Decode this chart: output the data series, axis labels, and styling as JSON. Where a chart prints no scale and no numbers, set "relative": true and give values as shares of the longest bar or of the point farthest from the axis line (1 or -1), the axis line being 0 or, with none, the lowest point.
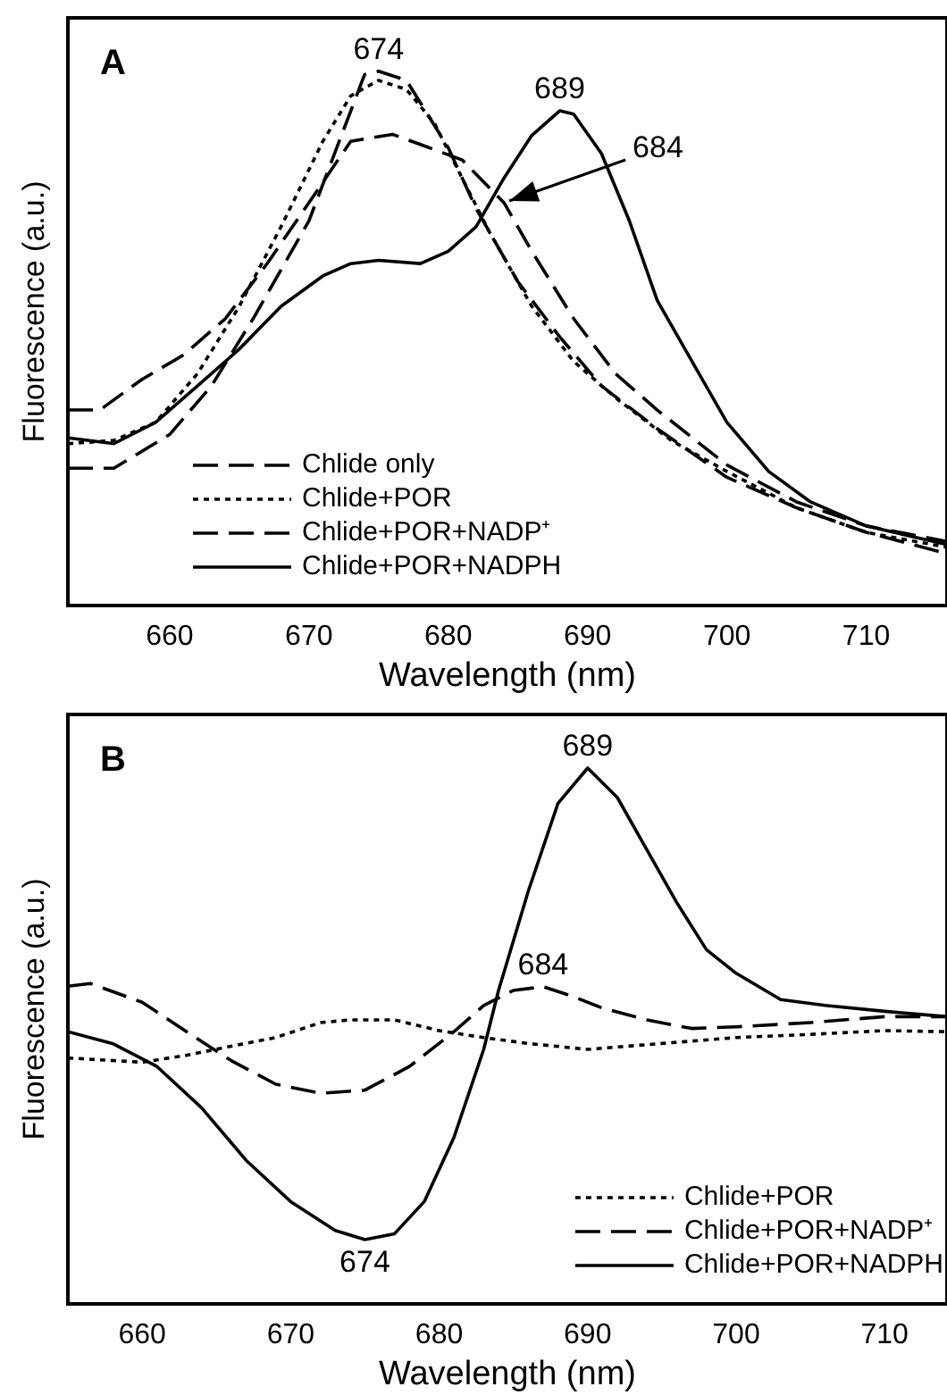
{
  "chart_data": [
    {
      "type": "line",
      "title": "A",
      "xlabel": "Wavelength (nm)",
      "ylabel": "Fluorescence (a.u.)",
      "relative": true,
      "xlim": [
        652.7,
        715.8
      ],
      "xticks": [
        660,
        670,
        680,
        690,
        700,
        710
      ],
      "tick_labels": "x",
      "legend": "bottom left",
      "annotations": [
        {
          "text": "674",
          "x": 675,
          "y": 1.0
        },
        {
          "text": "689",
          "x": 688,
          "y": 0.926
        },
        {
          "text": "684",
          "x": 684,
          "y": 0.754
        }
      ],
      "series": [
        {
          "name": "Chlide only",
          "color": "#000000",
          "line_style": "dashed",
          "x": [
            652.7,
            656,
            660,
            663,
            666,
            670,
            672,
            674,
            675,
            677,
            680,
            682,
            685,
            688,
            691,
            695,
            700,
            705,
            710,
            715.8
          ],
          "values": [
            0.257,
            0.257,
            0.32,
            0.411,
            0.537,
            0.72,
            0.857,
            0.994,
            1.0,
            0.983,
            0.857,
            0.743,
            0.606,
            0.503,
            0.411,
            0.331,
            0.24,
            0.183,
            0.137,
            0.097
          ]
        },
        {
          "name": "Chlide+POR",
          "color": "#000000",
          "line_style": "dotted",
          "x": [
            652.7,
            656,
            659,
            662,
            665,
            668,
            671,
            673,
            675,
            677,
            679,
            681,
            683,
            686,
            689,
            692,
            696,
            700,
            705,
            710,
            715.8
          ],
          "values": [
            0.303,
            0.309,
            0.343,
            0.434,
            0.56,
            0.709,
            0.869,
            0.954,
            0.983,
            0.966,
            0.903,
            0.8,
            0.697,
            0.56,
            0.457,
            0.389,
            0.309,
            0.251,
            0.183,
            0.137,
            0.109
          ]
        },
        {
          "name": "Chlide+POR+NADP⁺",
          "color": "#000000",
          "line_style": "dashed",
          "x": [
            652.7,
            655,
            658,
            661,
            664,
            667,
            670,
            673,
            676,
            678,
            681,
            684,
            686,
            689,
            692,
            695,
            700,
            705,
            710,
            715.8
          ],
          "values": [
            0.366,
            0.366,
            0.423,
            0.469,
            0.537,
            0.64,
            0.754,
            0.869,
            0.882,
            0.863,
            0.834,
            0.754,
            0.663,
            0.537,
            0.434,
            0.366,
            0.263,
            0.194,
            0.149,
            0.12
          ]
        },
        {
          "name": "Chlide+POR+NADPH",
          "color": "#000000",
          "line_style": "solid",
          "x": [
            652.7,
            656,
            659,
            662,
            665,
            668,
            671,
            673,
            675,
            678,
            680,
            682,
            684,
            686,
            688,
            689,
            691,
            693,
            695,
            698,
            700,
            703,
            706,
            710,
            715.8
          ],
          "values": [
            0.314,
            0.303,
            0.343,
            0.411,
            0.48,
            0.56,
            0.617,
            0.64,
            0.646,
            0.64,
            0.663,
            0.709,
            0.8,
            0.88,
            0.926,
            0.92,
            0.846,
            0.72,
            0.571,
            0.434,
            0.343,
            0.251,
            0.194,
            0.149,
            0.114
          ]
        }
      ]
    },
    {
      "type": "line",
      "title": "B",
      "xlabel": "Wavelength (nm)",
      "ylabel": "Fluorescence (a.u.)",
      "relative": true,
      "xlim": [
        655.0,
        714.2
      ],
      "xticks": [
        660,
        670,
        680,
        690,
        700,
        710
      ],
      "tick_labels": "x",
      "legend": "bottom right",
      "annotations": [
        {
          "text": "689",
          "x": 690,
          "y": 1.0
        },
        {
          "text": "684",
          "x": 687,
          "y": 0.592
        },
        {
          "text": "674",
          "x": 675,
          "y": 0.12
        }
      ],
      "series": [
        {
          "name": "Chlide+POR",
          "color": "#000000",
          "line_style": "dotted",
          "x": [
            655,
            660,
            663,
            666,
            669,
            672,
            674,
            677,
            680,
            683,
            686,
            690,
            695,
            700,
            705,
            710,
            714.2
          ],
          "values": [
            0.459,
            0.451,
            0.464,
            0.481,
            0.497,
            0.525,
            0.53,
            0.53,
            0.51,
            0.497,
            0.486,
            0.475,
            0.486,
            0.497,
            0.503,
            0.51,
            0.508
          ]
        },
        {
          "name": "Chlide+POR+NADP⁺",
          "color": "#000000",
          "line_style": "dashed",
          "x": [
            655,
            656.5,
            660,
            663,
            666,
            669,
            672,
            675,
            678,
            681,
            683,
            685,
            687,
            689,
            691,
            694,
            697,
            700,
            705,
            710,
            714.2
          ],
          "values": [
            0.593,
            0.598,
            0.563,
            0.508,
            0.454,
            0.41,
            0.393,
            0.399,
            0.443,
            0.508,
            0.557,
            0.585,
            0.592,
            0.574,
            0.552,
            0.53,
            0.514,
            0.517,
            0.525,
            0.536,
            0.536
          ]
        },
        {
          "name": "Chlide+POR+NADPH",
          "color": "#000000",
          "line_style": "solid",
          "x": [
            655,
            658,
            661,
            664,
            667,
            670,
            673,
            675,
            677,
            679,
            681,
            683,
            684,
            686,
            688,
            690,
            692,
            694,
            696,
            698,
            700,
            703,
            706,
            710,
            714.2
          ],
          "values": [
            0.508,
            0.486,
            0.443,
            0.366,
            0.268,
            0.191,
            0.137,
            0.12,
            0.131,
            0.191,
            0.311,
            0.475,
            0.585,
            0.77,
            0.934,
            1.0,
            0.945,
            0.847,
            0.749,
            0.661,
            0.617,
            0.568,
            0.557,
            0.546,
            0.536
          ]
        }
      ]
    }
  ]
}
